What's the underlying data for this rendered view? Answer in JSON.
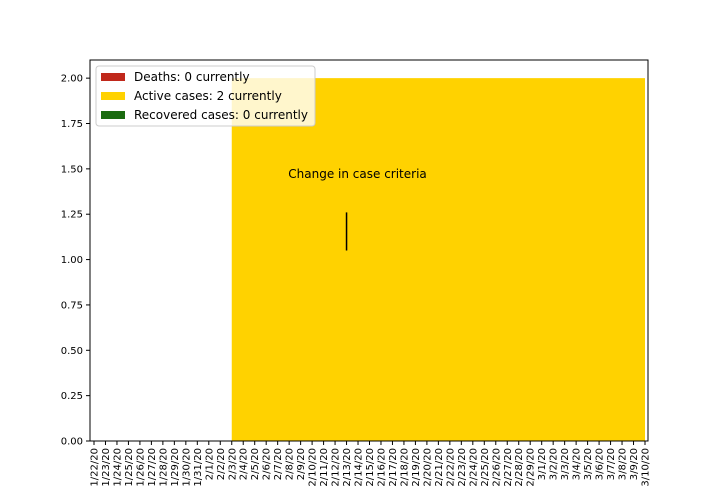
{
  "chart_data": {
    "type": "area",
    "title": "",
    "xlabel": "",
    "ylabel": "",
    "ylim": [
      0,
      2.1
    ],
    "yticks": [
      "0.00",
      "0.25",
      "0.50",
      "0.75",
      "1.00",
      "1.25",
      "1.50",
      "1.75",
      "2.00"
    ],
    "grid": false,
    "legend_position": "top-left",
    "categories": [
      "1/22/20",
      "1/23/20",
      "1/24/20",
      "1/25/20",
      "1/26/20",
      "1/27/20",
      "1/28/20",
      "1/29/20",
      "1/30/20",
      "1/31/20",
      "2/1/20",
      "2/2/20",
      "2/3/20",
      "2/4/20",
      "2/5/20",
      "2/6/20",
      "2/7/20",
      "2/8/20",
      "2/9/20",
      "2/10/20",
      "2/11/20",
      "2/12/20",
      "2/13/20",
      "2/14/20",
      "2/15/20",
      "2/16/20",
      "2/17/20",
      "2/18/20",
      "2/19/20",
      "2/20/20",
      "2/21/20",
      "2/22/20",
      "2/23/20",
      "2/24/20",
      "2/25/20",
      "2/26/20",
      "2/27/20",
      "2/28/20",
      "2/29/20",
      "3/1/20",
      "3/2/20",
      "3/3/20",
      "3/4/20",
      "3/5/20",
      "3/6/20",
      "3/7/20",
      "3/8/20",
      "3/9/20",
      "3/10/20"
    ],
    "series": [
      {
        "name": "Deaths: 0 currently",
        "color": "#c0281b",
        "values": [
          0,
          0,
          0,
          0,
          0,
          0,
          0,
          0,
          0,
          0,
          0,
          0,
          0,
          0,
          0,
          0,
          0,
          0,
          0,
          0,
          0,
          0,
          0,
          0,
          0,
          0,
          0,
          0,
          0,
          0,
          0,
          0,
          0,
          0,
          0,
          0,
          0,
          0,
          0,
          0,
          0,
          0,
          0,
          0,
          0,
          0,
          0,
          0,
          0
        ]
      },
      {
        "name": "Active cases: 2 currently",
        "color": "#ffd200",
        "values": [
          0,
          0,
          0,
          0,
          0,
          0,
          0,
          0,
          0,
          0,
          0,
          0,
          2,
          2,
          2,
          2,
          2,
          2,
          2,
          2,
          2,
          2,
          2,
          2,
          2,
          2,
          2,
          2,
          2,
          2,
          2,
          2,
          2,
          2,
          2,
          2,
          2,
          2,
          2,
          2,
          2,
          2,
          2,
          2,
          2,
          2,
          2,
          2,
          2
        ]
      },
      {
        "name": "Recovered cases: 0 currently",
        "color": "#1a6b10",
        "values": [
          0,
          0,
          0,
          0,
          0,
          0,
          0,
          0,
          0,
          0,
          0,
          0,
          0,
          0,
          0,
          0,
          0,
          0,
          0,
          0,
          0,
          0,
          0,
          0,
          0,
          0,
          0,
          0,
          0,
          0,
          0,
          0,
          0,
          0,
          0,
          0,
          0,
          0,
          0,
          0,
          0,
          0,
          0,
          0,
          0,
          0,
          0,
          0,
          0
        ]
      }
    ],
    "annotation": {
      "text": "Change in case criteria",
      "x_category": "2/13/20",
      "y_from": 1.05,
      "y_to": 1.26
    }
  }
}
